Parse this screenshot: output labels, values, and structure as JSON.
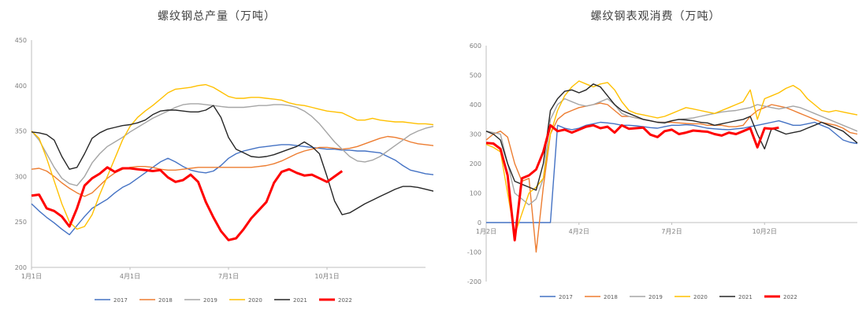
{
  "chart_data": [
    {
      "type": "line",
      "title": "螺纹钢总产量（万吨）",
      "xlabel": "",
      "ylabel": "",
      "ylim": [
        200,
        450
      ],
      "yticks": [
        "200",
        "250",
        "300",
        "350",
        "400",
        "450"
      ],
      "x_ticks": [
        "1月1日",
        "4月1日",
        "7月1日",
        "10月1日"
      ],
      "grid": false,
      "legend": "bottom",
      "series": [
        {
          "name": "2017",
          "color": "#4472C4",
          "values": [
            270,
            262,
            255,
            249,
            242,
            236,
            246,
            256,
            265,
            270,
            275,
            282,
            288,
            292,
            298,
            304,
            310,
            316,
            320,
            316,
            311,
            307,
            305,
            304,
            306,
            312,
            320,
            325,
            328,
            330,
            332,
            333,
            334,
            335,
            335,
            334,
            333,
            332,
            331,
            330,
            330,
            329,
            329,
            328,
            328,
            327,
            326,
            322,
            318,
            312,
            307,
            305,
            303,
            302,
            302,
            301,
            300,
            300,
            299,
            299
          ]
        },
        {
          "name": "2018",
          "color": "#ED7D31",
          "values": [
            308,
            309,
            306,
            300,
            293,
            287,
            282,
            278,
            282,
            290,
            298,
            304,
            308,
            310,
            311,
            311,
            310,
            308,
            307,
            307,
            308,
            309,
            310,
            310,
            310,
            310,
            310,
            310,
            310,
            310,
            311,
            312,
            314,
            317,
            321,
            325,
            328,
            330,
            332,
            332,
            331,
            330,
            331,
            333,
            336,
            339,
            342,
            344,
            343,
            341,
            338,
            336,
            335,
            334,
            333,
            332,
            331,
            330,
            331,
            333
          ]
        },
        {
          "name": "2019",
          "color": "#A5A5A5",
          "values": [
            350,
            340,
            325,
            310,
            298,
            292,
            290,
            300,
            315,
            325,
            333,
            338,
            343,
            349,
            354,
            359,
            364,
            368,
            372,
            376,
            379,
            380,
            380,
            379,
            378,
            377,
            376,
            376,
            376,
            377,
            378,
            378,
            379,
            379,
            378,
            376,
            372,
            366,
            358,
            348,
            338,
            330,
            322,
            317,
            316,
            318,
            322,
            328,
            334,
            340,
            346,
            350,
            353,
            355,
            357,
            358,
            359,
            361,
            360,
            346
          ]
        },
        {
          "name": "2020",
          "color": "#FFC000",
          "values": [
            350,
            342,
            320,
            295,
            270,
            250,
            242,
            245,
            258,
            280,
            300,
            320,
            340,
            355,
            365,
            372,
            378,
            385,
            392,
            396,
            397,
            398,
            400,
            401,
            398,
            393,
            388,
            386,
            386,
            387,
            387,
            386,
            385,
            384,
            381,
            379,
            378,
            376,
            374,
            372,
            371,
            370,
            366,
            362,
            362,
            364,
            362,
            361,
            360,
            360,
            359,
            358,
            358,
            357,
            356,
            355,
            354,
            353,
            351,
            347
          ]
        },
        {
          "name": "2021",
          "color": "#262626",
          "values": [
            349,
            348,
            346,
            340,
            322,
            308,
            310,
            325,
            342,
            348,
            352,
            354,
            356,
            357,
            359,
            362,
            368,
            372,
            373,
            373,
            372,
            371,
            371,
            373,
            378,
            365,
            343,
            330,
            326,
            322,
            321,
            322,
            324,
            327,
            330,
            333,
            338,
            333,
            325,
            300,
            273,
            258,
            260,
            265,
            270,
            274,
            278,
            282,
            286,
            289,
            289,
            288,
            286,
            284,
            281,
            279,
            276,
            273,
            272,
            270
          ]
        },
        {
          "name": "2022",
          "color": "#FF0000",
          "values": [
            279,
            280,
            265,
            262,
            256,
            245,
            265,
            290,
            298,
            303,
            310,
            305,
            309,
            309,
            308,
            307,
            306,
            307,
            299,
            294,
            296,
            302,
            294,
            272,
            255,
            240,
            230,
            232,
            242,
            254,
            263,
            272,
            293,
            305,
            308,
            304,
            301,
            302,
            298,
            294,
            300,
            306
          ]
        }
      ]
    },
    {
      "type": "line",
      "title": "螺纹钢表观消费（万吨）",
      "xlabel": "",
      "ylabel": "",
      "ylim": [
        -200,
        600
      ],
      "yticks": [
        "-200",
        "-100",
        "0",
        "100",
        "200",
        "300",
        "400",
        "500",
        "600"
      ],
      "x_ticks": [
        "1月2日",
        "4月2日",
        "7月2日",
        "10月2日"
      ],
      "grid": false,
      "legend": "bottom",
      "series": [
        {
          "name": "2017",
          "color": "#4472C4",
          "values": [
            0,
            0,
            0,
            0,
            0,
            0,
            0,
            0,
            0,
            0,
            330,
            320,
            315,
            320,
            330,
            335,
            340,
            338,
            335,
            330,
            330,
            328,
            325,
            322,
            320,
            325,
            330,
            330,
            332,
            330,
            325,
            320,
            318,
            316,
            315,
            318,
            320,
            325,
            330,
            335,
            340,
            345,
            338,
            330,
            330,
            335,
            340,
            330,
            320,
            300,
            280,
            272,
            268
          ]
        },
        {
          "name": "2018",
          "color": "#ED7D31",
          "values": [
            280,
            300,
            310,
            290,
            200,
            140,
            150,
            -100,
            120,
            300,
            350,
            370,
            380,
            390,
            395,
            400,
            405,
            400,
            380,
            360,
            360,
            355,
            350,
            345,
            340,
            340,
            340,
            338,
            336,
            335,
            335,
            330,
            330,
            330,
            325,
            325,
            330,
            360,
            380,
            390,
            400,
            395,
            390,
            380,
            370,
            360,
            350,
            340,
            335,
            330,
            320,
            305,
            300
          ]
        },
        {
          "name": "2019",
          "color": "#A5A5A5",
          "values": [
            310,
            305,
            300,
            200,
            100,
            80,
            60,
            80,
            150,
            350,
            400,
            420,
            410,
            400,
            395,
            400,
            410,
            420,
            400,
            370,
            360,
            355,
            350,
            345,
            340,
            340,
            345,
            350,
            352,
            355,
            360,
            365,
            370,
            375,
            378,
            380,
            385,
            390,
            400,
            395,
            390,
            385,
            390,
            395,
            390,
            380,
            370,
            360,
            350,
            340,
            330,
            320,
            310
          ]
        },
        {
          "name": "2020",
          "color": "#FFC000",
          "values": [
            265,
            255,
            240,
            100,
            -40,
            30,
            100,
            120,
            150,
            300,
            380,
            430,
            460,
            480,
            470,
            460,
            470,
            475,
            450,
            410,
            380,
            370,
            365,
            360,
            355,
            360,
            370,
            380,
            390,
            385,
            380,
            375,
            370,
            380,
            390,
            400,
            410,
            450,
            350,
            420,
            430,
            440,
            455,
            465,
            450,
            420,
            400,
            380,
            375,
            380,
            375,
            370,
            365
          ]
        },
        {
          "name": "2021",
          "color": "#262626",
          "values": [
            310,
            300,
            280,
            200,
            140,
            130,
            120,
            110,
            200,
            380,
            420,
            445,
            450,
            440,
            450,
            470,
            460,
            430,
            400,
            380,
            370,
            360,
            350,
            345,
            340,
            338,
            345,
            350,
            348,
            345,
            340,
            338,
            330,
            335,
            340,
            345,
            350,
            360,
            300,
            250,
            320,
            310,
            300,
            305,
            310,
            320,
            330,
            340,
            330,
            320,
            310,
            290,
            270
          ]
        },
        {
          "name": "2022",
          "color": "#FF0000",
          "values": [
            270,
            268,
            250,
            160,
            -60,
            150,
            160,
            180,
            240,
            330,
            310,
            315,
            305,
            315,
            325,
            330,
            320,
            325,
            305,
            330,
            318,
            320,
            322,
            298,
            290,
            310,
            315,
            300,
            305,
            312,
            310,
            308,
            300,
            295,
            305,
            300,
            310,
            320,
            255,
            320,
            318,
            322
          ]
        }
      ]
    }
  ]
}
